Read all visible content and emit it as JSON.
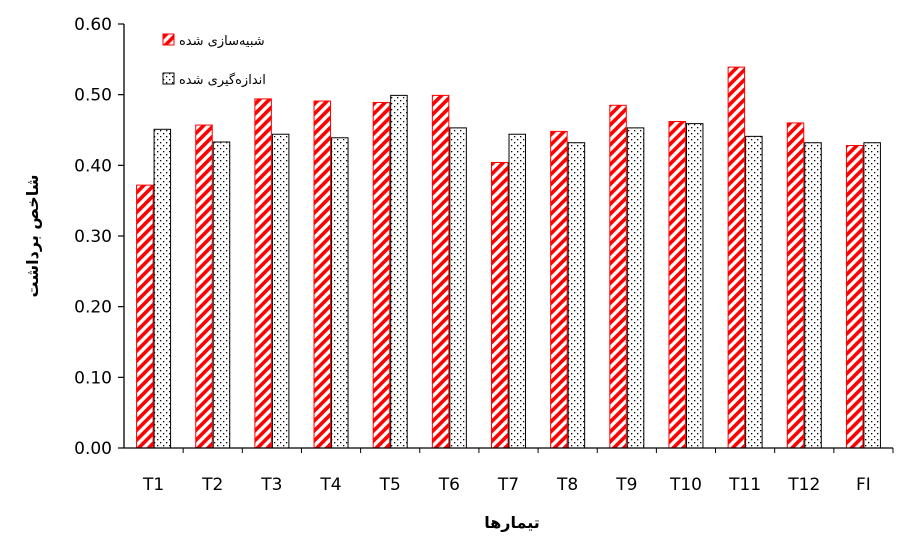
{
  "chart_data": {
    "type": "bar",
    "xlabel": "تیمارها",
    "ylabel": "شاخص برداشت",
    "ylim": [
      0,
      0.6
    ],
    "yticks": [
      "0.00",
      "0.10",
      "0.20",
      "0.30",
      "0.40",
      "0.50",
      "0.60"
    ],
    "grid": false,
    "legend_position": "top-left",
    "categories": [
      "T1",
      "T2",
      "T3",
      "T4",
      "T5",
      "T6",
      "T7",
      "T8",
      "T9",
      "T10",
      "T11",
      "T12",
      "FI"
    ],
    "series": [
      {
        "name": "شبیه‌سازی شده",
        "pattern": "diagonal-stripes",
        "color": "#ff0000",
        "values": [
          0.372,
          0.457,
          0.494,
          0.491,
          0.489,
          0.499,
          0.404,
          0.448,
          0.485,
          0.462,
          0.539,
          0.46,
          0.428
        ]
      },
      {
        "name": "اندازه‌گیری شده",
        "pattern": "dots",
        "color": "#000000",
        "values": [
          0.451,
          0.433,
          0.444,
          0.439,
          0.499,
          0.453,
          0.444,
          0.432,
          0.453,
          0.459,
          0.441,
          0.432,
          0.432
        ]
      }
    ]
  }
}
